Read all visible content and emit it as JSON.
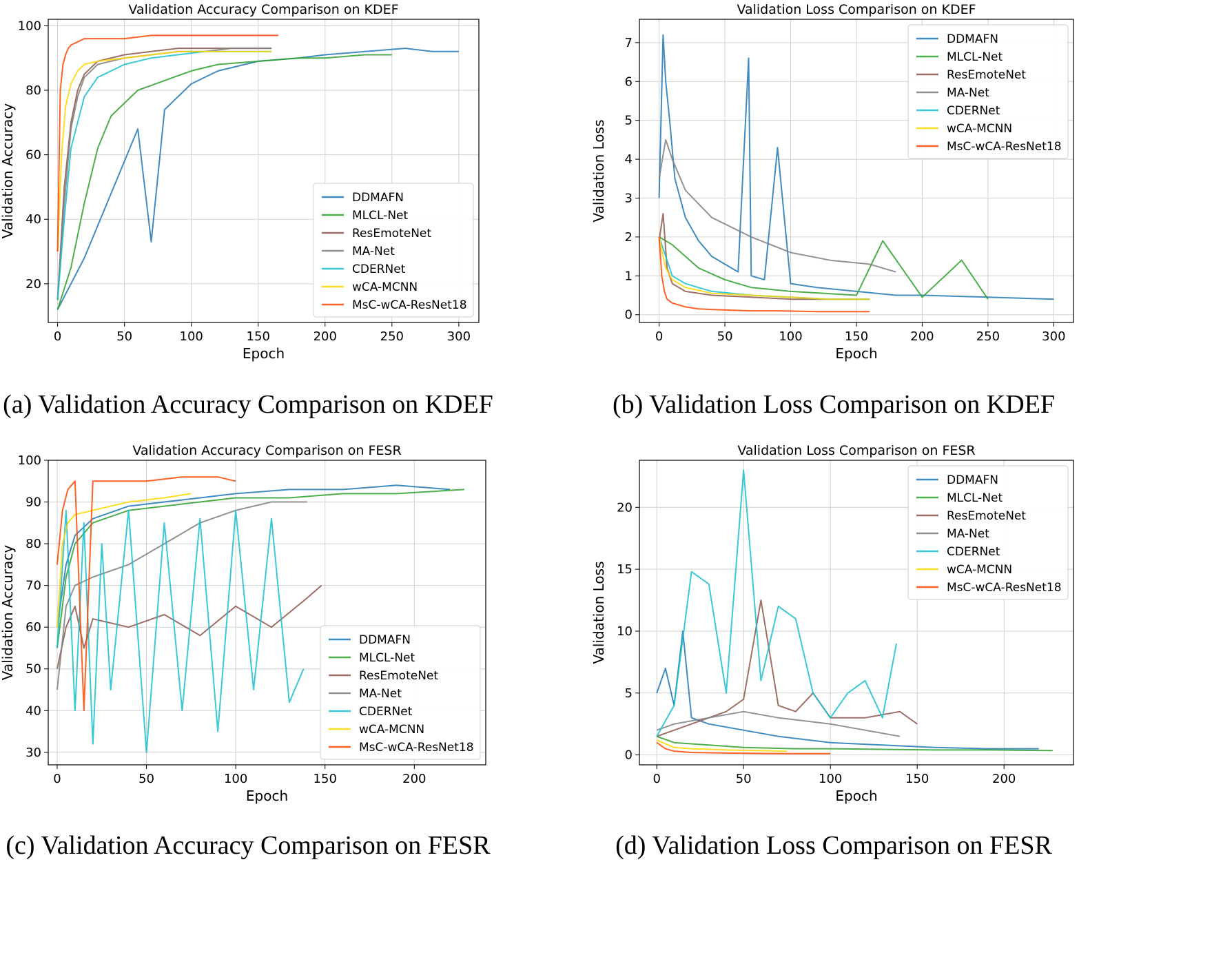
{
  "figure": {
    "captions": [
      "(a) Validation Accuracy Comparison on KDEF",
      "(b) Validation Loss Comparison on KDEF",
      "(c) Validation Accuracy Comparison on FESR",
      "(d) Validation Loss Comparison on FESR"
    ]
  },
  "colors": {
    "DDMAFN": "#1f77b4",
    "MLCL-Net": "#2ca02c",
    "ResEmoteNet": "#8c564b",
    "MA-Net": "#7f7f7f",
    "CDERNet": "#17becf",
    "wCA-MCNN": "#ffd700",
    "MsC-wCA-ResNet18": "#ff4500"
  },
  "chart_data": [
    {
      "type": "line",
      "title": "Validation Accuracy Comparison on KDEF",
      "xlabel": "Epoch",
      "ylabel": "Validation Accuracy",
      "xlim": [
        -7,
        315
      ],
      "ylim": [
        8,
        102
      ],
      "xticks": [
        0,
        50,
        100,
        150,
        200,
        250,
        300
      ],
      "yticks": [
        20,
        40,
        60,
        80,
        100
      ],
      "grid": true,
      "legend_position": "lower-right",
      "legend": [
        "DDMAFN",
        "MLCL-Net",
        "ResEmoteNet",
        "MA-Net",
        "CDERNet",
        "wCA-MCNN",
        "MsC-wCA-ResNet18"
      ],
      "series": [
        {
          "name": "DDMAFN",
          "x": [
            0,
            10,
            20,
            30,
            40,
            50,
            60,
            70,
            80,
            100,
            120,
            150,
            180,
            200,
            230,
            260,
            280,
            300
          ],
          "y": [
            12,
            20,
            28,
            38,
            48,
            58,
            68,
            33,
            74,
            82,
            86,
            89,
            90,
            91,
            92,
            93,
            92,
            92
          ]
        },
        {
          "name": "MLCL-Net",
          "x": [
            0,
            10,
            20,
            30,
            40,
            60,
            80,
            100,
            120,
            150,
            180,
            200,
            230,
            250
          ],
          "y": [
            12,
            25,
            45,
            62,
            72,
            80,
            83,
            86,
            88,
            89,
            90,
            90,
            91,
            91
          ]
        },
        {
          "name": "ResEmoteNet",
          "x": [
            0,
            5,
            10,
            15,
            20,
            30,
            50,
            70,
            90,
            110,
            130,
            160
          ],
          "y": [
            15,
            50,
            70,
            80,
            85,
            89,
            91,
            92,
            93,
            93,
            93,
            93
          ]
        },
        {
          "name": "MA-Net",
          "x": [
            0,
            5,
            10,
            15,
            20,
            30,
            50,
            70,
            90,
            110,
            130,
            160
          ],
          "y": [
            15,
            45,
            68,
            78,
            84,
            88,
            90,
            91,
            92,
            92,
            93,
            93
          ]
        },
        {
          "name": "CDERNet",
          "x": [
            0,
            5,
            10,
            20,
            30,
            50,
            70,
            90,
            110,
            130,
            160
          ],
          "y": [
            15,
            40,
            62,
            78,
            84,
            88,
            90,
            91,
            92,
            92,
            92
          ]
        },
        {
          "name": "wCA-MCNN",
          "x": [
            0,
            3,
            6,
            10,
            15,
            20,
            30,
            50,
            70,
            90,
            110,
            130,
            160
          ],
          "y": [
            30,
            60,
            75,
            82,
            86,
            88,
            89,
            90,
            91,
            92,
            92,
            92,
            92
          ]
        },
        {
          "name": "MsC-wCA-ResNet18",
          "x": [
            0,
            2,
            4,
            6,
            8,
            10,
            15,
            20,
            30,
            50,
            70,
            90,
            110,
            130,
            165
          ],
          "y": [
            30,
            80,
            88,
            91,
            93,
            94,
            95,
            96,
            96,
            96,
            97,
            97,
            97,
            97,
            97
          ]
        }
      ]
    },
    {
      "type": "line",
      "title": "Validation Loss Comparison on KDEF",
      "xlabel": "Epoch",
      "ylabel": "Validation Loss",
      "xlim": [
        -15,
        315
      ],
      "ylim": [
        -0.2,
        7.6
      ],
      "xticks": [
        0,
        50,
        100,
        150,
        200,
        250,
        300
      ],
      "yticks": [
        0,
        1,
        2,
        3,
        4,
        5,
        6,
        7
      ],
      "grid": true,
      "legend_position": "upper-right",
      "legend": [
        "DDMAFN",
        "MLCL-Net",
        "ResEmoteNet",
        "MA-Net",
        "CDERNet",
        "wCA-MCNN",
        "MsC-wCA-ResNet18"
      ],
      "series": [
        {
          "name": "DDMAFN",
          "x": [
            0,
            3,
            5,
            8,
            12,
            20,
            30,
            40,
            50,
            60,
            68,
            70,
            80,
            90,
            100,
            120,
            150,
            180,
            200,
            250,
            300
          ],
          "y": [
            3.0,
            7.2,
            6.0,
            5.0,
            3.5,
            2.5,
            1.9,
            1.5,
            1.3,
            1.1,
            6.6,
            1.0,
            0.9,
            4.3,
            0.8,
            0.7,
            0.6,
            0.5,
            0.5,
            0.45,
            0.4
          ]
        },
        {
          "name": "MLCL-Net",
          "x": [
            0,
            5,
            10,
            20,
            30,
            50,
            70,
            100,
            150,
            170,
            200,
            230,
            250
          ],
          "y": [
            2.0,
            1.9,
            1.8,
            1.5,
            1.2,
            0.9,
            0.7,
            0.6,
            0.5,
            1.9,
            0.45,
            1.4,
            0.4
          ]
        },
        {
          "name": "ResEmoteNet",
          "x": [
            0,
            3,
            6,
            10,
            20,
            40,
            70,
            100,
            130,
            160
          ],
          "y": [
            1.9,
            2.6,
            1.2,
            0.8,
            0.6,
            0.5,
            0.45,
            0.4,
            0.4,
            0.4
          ]
        },
        {
          "name": "MA-Net",
          "x": [
            0,
            5,
            10,
            20,
            40,
            70,
            100,
            130,
            160,
            180
          ],
          "y": [
            3.5,
            4.5,
            4.0,
            3.2,
            2.5,
            2.0,
            1.6,
            1.4,
            1.3,
            1.1
          ]
        },
        {
          "name": "CDERNet",
          "x": [
            0,
            5,
            10,
            20,
            40,
            70,
            100,
            130,
            160
          ],
          "y": [
            2.0,
            1.5,
            1.0,
            0.8,
            0.6,
            0.5,
            0.45,
            0.4,
            0.4
          ]
        },
        {
          "name": "wCA-MCNN",
          "x": [
            0,
            5,
            10,
            20,
            40,
            70,
            100,
            130,
            160
          ],
          "y": [
            2.0,
            1.2,
            0.9,
            0.7,
            0.55,
            0.5,
            0.45,
            0.4,
            0.4
          ]
        },
        {
          "name": "MsC-wCA-ResNet18",
          "x": [
            0,
            2,
            4,
            6,
            10,
            15,
            20,
            30,
            50,
            70,
            90,
            120,
            160
          ],
          "y": [
            2.0,
            1.0,
            0.6,
            0.4,
            0.3,
            0.25,
            0.2,
            0.15,
            0.12,
            0.1,
            0.1,
            0.08,
            0.08
          ]
        }
      ]
    },
    {
      "type": "line",
      "title": "Validation Accuracy Comparison on FESR",
      "xlabel": "Epoch",
      "ylabel": "Validation Accuracy",
      "xlim": [
        -5,
        240
      ],
      "ylim": [
        27,
        100
      ],
      "xticks": [
        0,
        50,
        100,
        150,
        200
      ],
      "yticks": [
        30,
        40,
        50,
        60,
        70,
        80,
        90,
        100
      ],
      "grid": true,
      "legend_position": "lower-right",
      "legend": [
        "DDMAFN",
        "MLCL-Net",
        "ResEmoteNet",
        "MA-Net",
        "CDERNet",
        "wCA-MCNN",
        "MsC-wCA-ResNet18"
      ],
      "series": [
        {
          "name": "DDMAFN",
          "x": [
            0,
            5,
            10,
            20,
            40,
            60,
            80,
            100,
            130,
            160,
            190,
            220
          ],
          "y": [
            60,
            75,
            82,
            86,
            89,
            90,
            91,
            92,
            93,
            93,
            94,
            93
          ]
        },
        {
          "name": "MLCL-Net",
          "x": [
            0,
            5,
            10,
            20,
            40,
            60,
            80,
            100,
            130,
            160,
            190,
            228
          ],
          "y": [
            55,
            72,
            80,
            85,
            88,
            89,
            90,
            91,
            91,
            92,
            92,
            93
          ]
        },
        {
          "name": "ResEmoteNet",
          "x": [
            0,
            5,
            10,
            15,
            20,
            40,
            60,
            80,
            100,
            120,
            140,
            148
          ],
          "y": [
            50,
            60,
            65,
            55,
            62,
            60,
            63,
            58,
            65,
            60,
            67,
            70
          ]
        },
        {
          "name": "MA-Net",
          "x": [
            0,
            5,
            10,
            20,
            40,
            60,
            80,
            100,
            120,
            140
          ],
          "y": [
            45,
            65,
            70,
            72,
            75,
            80,
            85,
            88,
            90,
            90
          ]
        },
        {
          "name": "CDERNet",
          "x": [
            0,
            5,
            10,
            15,
            20,
            25,
            30,
            40,
            50,
            60,
            70,
            80,
            90,
            100,
            110,
            120,
            130,
            138
          ],
          "y": [
            55,
            88,
            40,
            85,
            32,
            80,
            45,
            88,
            30,
            85,
            40,
            86,
            35,
            88,
            45,
            86,
            42,
            50
          ]
        },
        {
          "name": "wCA-MCNN",
          "x": [
            0,
            3,
            6,
            10,
            20,
            40,
            60,
            75
          ],
          "y": [
            60,
            80,
            85,
            87,
            88,
            90,
            91,
            92
          ]
        },
        {
          "name": "MsC-wCA-ResNet18",
          "x": [
            0,
            3,
            6,
            10,
            15,
            20,
            30,
            50,
            70,
            90,
            100
          ],
          "y": [
            75,
            88,
            93,
            95,
            40,
            95,
            95,
            95,
            96,
            96,
            95
          ]
        }
      ]
    },
    {
      "type": "line",
      "title": "Validation Loss Comparison on FESR",
      "xlabel": "Epoch",
      "ylabel": "Validation Loss",
      "xlim": [
        -10,
        240
      ],
      "ylim": [
        -0.8,
        23.8
      ],
      "xticks": [
        0,
        50,
        100,
        150,
        200
      ],
      "yticks": [
        0,
        5,
        10,
        15,
        20
      ],
      "grid": true,
      "legend_position": "upper-right",
      "legend": [
        "DDMAFN",
        "MLCL-Net",
        "ResEmoteNet",
        "MA-Net",
        "CDERNet",
        "wCA-MCNN",
        "MsC-wCA-ResNet18"
      ],
      "series": [
        {
          "name": "DDMAFN",
          "x": [
            0,
            5,
            10,
            15,
            20,
            30,
            50,
            70,
            100,
            130,
            160,
            190,
            220
          ],
          "y": [
            5.0,
            7.0,
            4.0,
            10.0,
            3.0,
            2.5,
            2.0,
            1.5,
            1.0,
            0.8,
            0.6,
            0.5,
            0.5
          ]
        },
        {
          "name": "MLCL-Net",
          "x": [
            0,
            10,
            30,
            50,
            80,
            100,
            130,
            160,
            190,
            228
          ],
          "y": [
            1.5,
            1.0,
            0.8,
            0.6,
            0.5,
            0.5,
            0.45,
            0.4,
            0.4,
            0.35
          ]
        },
        {
          "name": "ResEmoteNet",
          "x": [
            0,
            10,
            20,
            30,
            40,
            50,
            60,
            70,
            80,
            90,
            100,
            120,
            140,
            150
          ],
          "y": [
            1.5,
            2.0,
            2.5,
            3.0,
            3.5,
            4.5,
            12.5,
            4.0,
            3.5,
            5.0,
            3.0,
            3.0,
            3.5,
            2.5
          ]
        },
        {
          "name": "MA-Net",
          "x": [
            0,
            10,
            30,
            50,
            70,
            100,
            120,
            140
          ],
          "y": [
            2.0,
            2.5,
            3.0,
            3.5,
            3.0,
            2.5,
            2.0,
            1.5
          ]
        },
        {
          "name": "CDERNet",
          "x": [
            0,
            10,
            20,
            30,
            40,
            50,
            60,
            70,
            80,
            90,
            100,
            110,
            120,
            130,
            138
          ],
          "y": [
            1.5,
            4.0,
            14.8,
            13.8,
            5.0,
            23.0,
            6.0,
            12.0,
            11.0,
            5.0,
            3.0,
            5.0,
            6.0,
            3.0,
            9.0
          ]
        },
        {
          "name": "wCA-MCNN",
          "x": [
            0,
            10,
            20,
            40,
            60,
            75
          ],
          "y": [
            1.2,
            0.6,
            0.5,
            0.4,
            0.35,
            0.3
          ]
        },
        {
          "name": "MsC-wCA-ResNet18",
          "x": [
            0,
            5,
            10,
            20,
            40,
            60,
            80,
            100
          ],
          "y": [
            1.0,
            0.5,
            0.3,
            0.2,
            0.15,
            0.12,
            0.1,
            0.1
          ]
        }
      ]
    }
  ]
}
